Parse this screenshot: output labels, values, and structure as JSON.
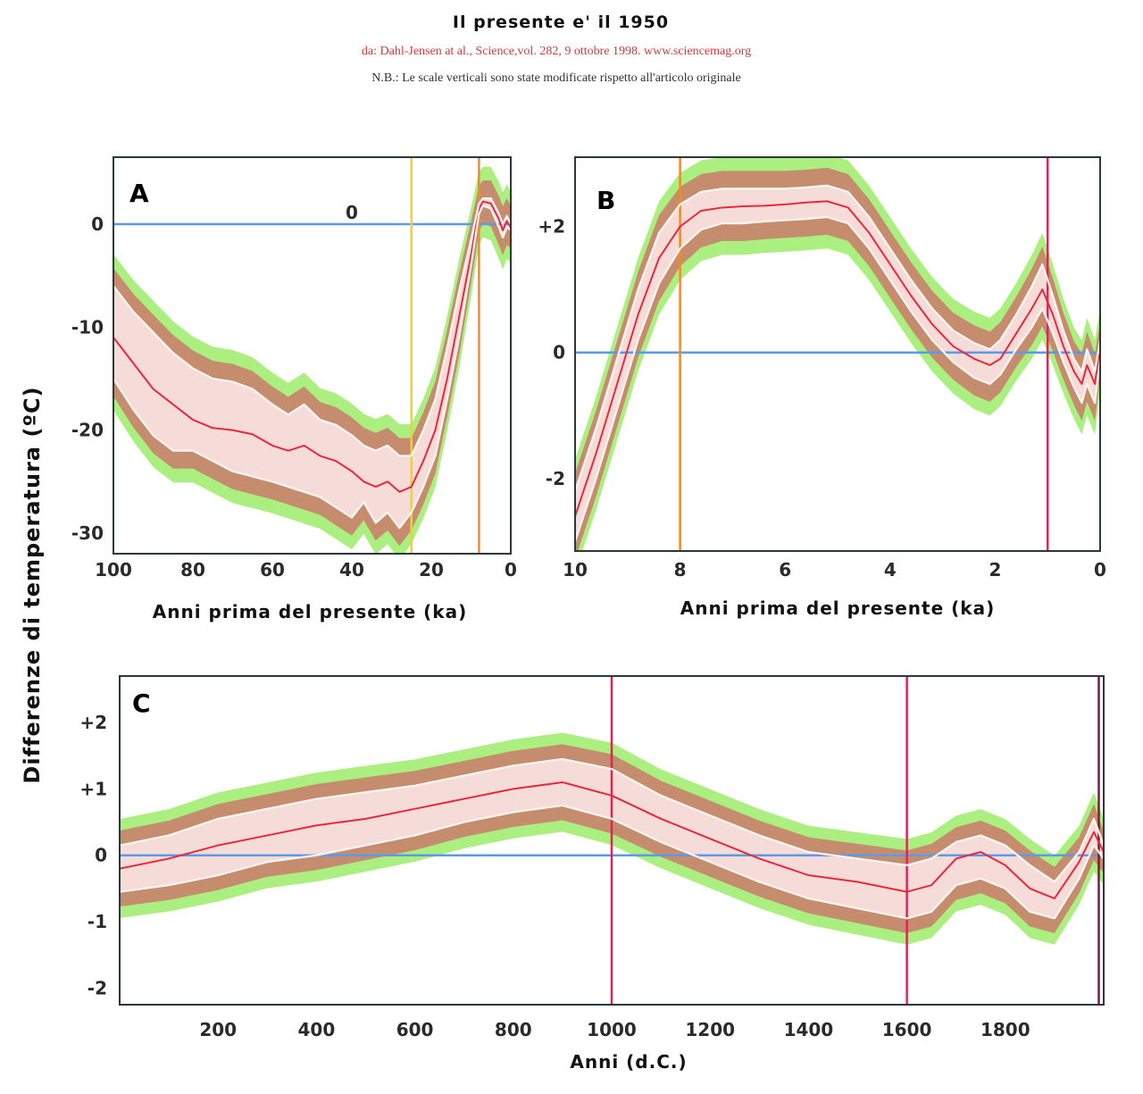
{
  "header": {
    "title": "Il presente e' il 1950",
    "source": "da: Dahl-Jensen at al., Science,vol. 282, 9 ottobre 1998. www.sciencemag.org",
    "note": "N.B.: Le scale verticali sono state modificate rispetto all'articolo originale"
  },
  "shared_ylabel": "Differenze di temperatura (ºC)",
  "colors": {
    "mean_line": "#e8283c",
    "envelope": "#fbe4e4",
    "uncertainty_brown": "#c97a6a",
    "uncertainty_green": "#a8ee7a",
    "zero_line": "#5a9ae8",
    "axis": "#2a3a3a"
  },
  "chart_data": [
    {
      "id": "A",
      "type": "line",
      "panel_label": "A",
      "title": "",
      "xlabel": "Anni prima del presente (ka)",
      "ylabel": "Differenze di temperatura (ºC)",
      "xlim": [
        100,
        0
      ],
      "ylim": [
        -32,
        6.5
      ],
      "x_ticks": [
        100,
        80,
        60,
        40,
        20,
        0
      ],
      "x_tick_labels": [
        "100",
        "80",
        "60",
        "40",
        "20",
        "0"
      ],
      "y_ticks": [
        0,
        -10,
        -20,
        -30
      ],
      "y_tick_labels": [
        "0",
        "-10",
        "-20",
        "-30"
      ],
      "annotations": [
        {
          "text": "0",
          "x": 40,
          "y": 0.5
        }
      ],
      "reference_lines": [
        {
          "axis": "y",
          "value": 0,
          "color": "#5a9ae8"
        },
        {
          "axis": "x",
          "value": 25,
          "color": "#f2d22a"
        },
        {
          "axis": "x",
          "value": 8,
          "color": "#f08a2a"
        }
      ],
      "series": [
        {
          "name": "mean",
          "x": [
            100,
            95,
            90,
            85,
            80,
            75,
            70,
            65,
            60,
            56,
            52,
            48,
            44,
            40,
            37,
            34,
            31,
            28,
            25,
            22,
            19,
            16,
            13,
            10,
            8,
            7,
            5,
            3,
            2,
            1,
            0
          ],
          "y": [
            -11,
            -13.5,
            -16,
            -17.5,
            -19,
            -19.8,
            -20,
            -20.4,
            -21.5,
            -22,
            -21.5,
            -22.5,
            -23,
            -24,
            -25,
            -25.5,
            -25,
            -26,
            -25.5,
            -23,
            -20,
            -15,
            -9,
            -3,
            1.5,
            2.2,
            2,
            0.5,
            -0.6,
            0.3,
            -0.3
          ]
        },
        {
          "name": "upper",
          "x": [
            100,
            95,
            90,
            85,
            80,
            75,
            70,
            65,
            60,
            56,
            52,
            48,
            44,
            40,
            37,
            34,
            31,
            28,
            25,
            22,
            19,
            16,
            13,
            10,
            8,
            7,
            5,
            3,
            2,
            1,
            0
          ],
          "y": [
            -6,
            -8.5,
            -10.5,
            -12.5,
            -14,
            -15,
            -15.3,
            -16,
            -17.5,
            -18.5,
            -17.5,
            -19,
            -19.5,
            -20.5,
            -21.5,
            -22,
            -21.5,
            -22.5,
            -22.5,
            -20,
            -17,
            -12,
            -6.5,
            -1.5,
            2,
            2.5,
            2.5,
            1,
            0,
            0.8,
            0
          ]
        },
        {
          "name": "lower",
          "x": [
            100,
            95,
            90,
            85,
            80,
            75,
            70,
            65,
            60,
            56,
            52,
            48,
            44,
            40,
            37,
            34,
            31,
            28,
            25,
            22,
            19,
            16,
            13,
            10,
            8,
            7,
            5,
            3,
            2,
            1,
            0
          ],
          "y": [
            -15,
            -18,
            -20.5,
            -22,
            -22,
            -23,
            -24,
            -24.5,
            -25,
            -25.5,
            -26,
            -26.5,
            -27.5,
            -28.5,
            -27,
            -29,
            -28,
            -29.5,
            -28,
            -25.5,
            -22.5,
            -17,
            -11,
            -4,
            1,
            1.8,
            1.5,
            -0.3,
            -1.3,
            -0.3,
            -0.6
          ]
        }
      ]
    },
    {
      "id": "B",
      "type": "line",
      "panel_label": "B",
      "title": "",
      "xlabel": "Anni prima del presente (ka)",
      "ylabel": "Differenze di temperatura (ºC)",
      "xlim": [
        10,
        0
      ],
      "ylim": [
        -3.15,
        3.1
      ],
      "x_ticks": [
        10,
        8,
        6,
        4,
        2,
        0
      ],
      "x_tick_labels": [
        "10",
        "8",
        "6",
        "4",
        "2",
        "0"
      ],
      "y_ticks": [
        2,
        0,
        -2
      ],
      "y_tick_labels": [
        "+2",
        "0",
        "-2"
      ],
      "reference_lines": [
        {
          "axis": "y",
          "value": 0,
          "color": "#5a9ae8"
        },
        {
          "axis": "x",
          "value": 8,
          "color": "#f08a2a"
        },
        {
          "axis": "x",
          "value": 1,
          "color": "#d8285a"
        }
      ],
      "series": [
        {
          "name": "mean",
          "x": [
            10,
            9.6,
            9.2,
            8.8,
            8.4,
            8.0,
            7.6,
            7.2,
            6.8,
            6.4,
            6.0,
            5.6,
            5.2,
            4.8,
            4.4,
            4.0,
            3.6,
            3.2,
            2.8,
            2.4,
            2.1,
            1.9,
            1.6,
            1.3,
            1.1,
            0.9,
            0.7,
            0.5,
            0.35,
            0.25,
            0.1,
            0
          ],
          "y": [
            -2.6,
            -1.6,
            -0.5,
            0.6,
            1.5,
            2.0,
            2.25,
            2.3,
            2.32,
            2.33,
            2.35,
            2.38,
            2.4,
            2.3,
            1.9,
            1.4,
            0.9,
            0.45,
            0.1,
            -0.1,
            -0.2,
            -0.1,
            0.3,
            0.7,
            1.0,
            0.6,
            0.1,
            -0.3,
            -0.5,
            -0.2,
            -0.5,
            0.1
          ]
        },
        {
          "name": "upper",
          "x": [
            10,
            9.6,
            9.2,
            8.8,
            8.4,
            8.0,
            7.6,
            7.2,
            6.8,
            6.4,
            6.0,
            5.6,
            5.2,
            4.8,
            4.4,
            4.0,
            3.6,
            3.2,
            2.8,
            2.4,
            2.1,
            1.9,
            1.6,
            1.3,
            1.1,
            0.9,
            0.7,
            0.5,
            0.35,
            0.25,
            0.1,
            0
          ],
          "y": [
            -2.2,
            -1.2,
            -0.1,
            1.0,
            1.9,
            2.35,
            2.55,
            2.6,
            2.6,
            2.6,
            2.6,
            2.62,
            2.65,
            2.55,
            2.15,
            1.65,
            1.15,
            0.7,
            0.35,
            0.15,
            0.05,
            0.2,
            0.6,
            1.05,
            1.4,
            0.9,
            0.35,
            -0.1,
            -0.3,
            0.05,
            -0.3,
            0.2
          ]
        },
        {
          "name": "lower",
          "x": [
            10,
            9.6,
            9.2,
            8.8,
            8.4,
            8.0,
            7.6,
            7.2,
            6.8,
            6.4,
            6.0,
            5.6,
            5.2,
            4.8,
            4.4,
            4.0,
            3.6,
            3.2,
            2.8,
            2.4,
            2.1,
            1.9,
            1.6,
            1.3,
            1.1,
            0.9,
            0.7,
            0.5,
            0.35,
            0.25,
            0.1,
            0
          ],
          "y": [
            -3.0,
            -2.0,
            -0.9,
            0.2,
            1.1,
            1.65,
            1.95,
            2.05,
            2.05,
            2.08,
            2.1,
            2.12,
            2.15,
            2.05,
            1.65,
            1.15,
            0.65,
            0.2,
            -0.15,
            -0.4,
            -0.5,
            -0.35,
            0.05,
            0.4,
            0.7,
            0.3,
            -0.15,
            -0.55,
            -0.8,
            -0.5,
            -0.8,
            -0.1
          ]
        }
      ]
    },
    {
      "id": "C",
      "type": "line",
      "panel_label": "C",
      "title": "",
      "xlabel": "Anni  (d.C.)",
      "ylabel": "Differenze di temperatura (ºC)",
      "xlim": [
        0,
        2000
      ],
      "ylim": [
        -2.25,
        2.7
      ],
      "x_ticks": [
        200,
        400,
        600,
        800,
        1000,
        1200,
        1400,
        1600,
        1800
      ],
      "x_tick_labels": [
        "200",
        "400",
        "600",
        "800",
        "1000",
        "1200",
        "1400",
        "1600",
        "1800"
      ],
      "y_ticks": [
        2,
        1,
        0,
        -1,
        -2
      ],
      "y_tick_labels": [
        "+2",
        "+1",
        "0",
        "-1",
        "-2"
      ],
      "reference_lines": [
        {
          "axis": "y",
          "value": 0,
          "color": "#5a9ae8"
        },
        {
          "axis": "x",
          "value": 1000,
          "color": "#d8285a"
        },
        {
          "axis": "x",
          "value": 1600,
          "color": "#d8285a"
        },
        {
          "axis": "x",
          "value": 1990,
          "color": "#7a1a3a"
        }
      ],
      "series": [
        {
          "name": "mean",
          "x": [
            0,
            100,
            200,
            300,
            400,
            500,
            600,
            700,
            800,
            900,
            1000,
            1100,
            1200,
            1300,
            1400,
            1500,
            1600,
            1650,
            1700,
            1750,
            1800,
            1850,
            1900,
            1950,
            1980,
            2000
          ],
          "y": [
            -0.2,
            -0.05,
            0.15,
            0.3,
            0.45,
            0.55,
            0.7,
            0.85,
            1.0,
            1.1,
            0.9,
            0.55,
            0.25,
            -0.05,
            -0.3,
            -0.4,
            -0.55,
            -0.45,
            -0.05,
            0.05,
            -0.15,
            -0.5,
            -0.65,
            -0.1,
            0.35,
            0.05
          ]
        },
        {
          "name": "upper",
          "x": [
            0,
            100,
            200,
            300,
            400,
            500,
            600,
            700,
            800,
            900,
            1000,
            1100,
            1200,
            1300,
            1400,
            1500,
            1600,
            1650,
            1700,
            1750,
            1800,
            1850,
            1900,
            1950,
            1980,
            2000
          ],
          "y": [
            0.15,
            0.3,
            0.55,
            0.7,
            0.85,
            0.95,
            1.05,
            1.2,
            1.35,
            1.45,
            1.3,
            0.9,
            0.6,
            0.3,
            0.05,
            -0.05,
            -0.15,
            -0.05,
            0.2,
            0.3,
            0.15,
            -0.15,
            -0.4,
            0.05,
            0.55,
            0.15
          ]
        },
        {
          "name": "lower",
          "x": [
            0,
            100,
            200,
            300,
            400,
            500,
            600,
            700,
            800,
            900,
            1000,
            1100,
            1200,
            1300,
            1400,
            1500,
            1600,
            1650,
            1700,
            1750,
            1800,
            1850,
            1900,
            1950,
            1980,
            2000
          ],
          "y": [
            -0.55,
            -0.45,
            -0.3,
            -0.1,
            0.0,
            0.15,
            0.3,
            0.5,
            0.65,
            0.75,
            0.55,
            0.2,
            -0.1,
            -0.4,
            -0.65,
            -0.8,
            -0.95,
            -0.85,
            -0.45,
            -0.35,
            -0.5,
            -0.85,
            -0.95,
            -0.35,
            0.15,
            -0.05
          ]
        }
      ]
    }
  ]
}
